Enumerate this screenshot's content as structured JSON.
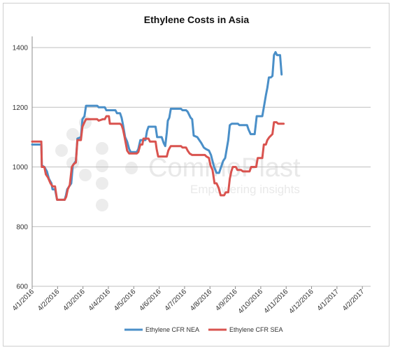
{
  "chart_data": {
    "type": "line",
    "title": "Ethylene Costs in Asia",
    "xlabel": "",
    "ylabel": "",
    "ylim": [
      600,
      1400
    ],
    "yticks": [
      600,
      800,
      1000,
      1200,
      1400
    ],
    "xticks": [
      "4/1/2016",
      "4/2/2016",
      "4/3/2016",
      "4/4/2016",
      "4/5/2016",
      "4/6/2016",
      "4/7/2016",
      "4/8/2016",
      "4/9/2016",
      "4/10/2016",
      "4/11/2016",
      "4/12/2016",
      "4/1/2017",
      "4/2/2017"
    ],
    "grid": "horizontal",
    "legend": "bottom",
    "series": [
      {
        "name": "Ethylene CFR NEA",
        "color": "#4a8fc8",
        "points": [
          [
            0,
            1075
          ],
          [
            0.36,
            1075
          ],
          [
            0.38,
            1005
          ],
          [
            0.48,
            1000
          ],
          [
            0.58,
            985
          ],
          [
            0.66,
            960
          ],
          [
            0.76,
            945
          ],
          [
            0.8,
            925
          ],
          [
            0.9,
            925
          ],
          [
            0.98,
            890
          ],
          [
            1.28,
            890
          ],
          [
            1.33,
            905
          ],
          [
            1.38,
            925
          ],
          [
            1.46,
            935
          ],
          [
            1.54,
            945
          ],
          [
            1.6,
            1005
          ],
          [
            1.72,
            1020
          ],
          [
            1.78,
            1095
          ],
          [
            1.92,
            1100
          ],
          [
            1.98,
            1160
          ],
          [
            2.06,
            1170
          ],
          [
            2.12,
            1205
          ],
          [
            2.56,
            1205
          ],
          [
            2.62,
            1200
          ],
          [
            2.86,
            1200
          ],
          [
            2.92,
            1190
          ],
          [
            3.28,
            1190
          ],
          [
            3.34,
            1180
          ],
          [
            3.46,
            1180
          ],
          [
            3.52,
            1165
          ],
          [
            3.58,
            1140
          ],
          [
            3.66,
            1100
          ],
          [
            3.74,
            1085
          ],
          [
            3.82,
            1060
          ],
          [
            3.88,
            1050
          ],
          [
            4.12,
            1050
          ],
          [
            4.18,
            1060
          ],
          [
            4.26,
            1090
          ],
          [
            4.46,
            1090
          ],
          [
            4.52,
            1120
          ],
          [
            4.58,
            1135
          ],
          [
            4.86,
            1135
          ],
          [
            4.92,
            1100
          ],
          [
            5.1,
            1100
          ],
          [
            5.18,
            1080
          ],
          [
            5.24,
            1070
          ],
          [
            5.3,
            1115
          ],
          [
            5.34,
            1155
          ],
          [
            5.4,
            1165
          ],
          [
            5.46,
            1195
          ],
          [
            5.56,
            1195
          ],
          [
            5.86,
            1195
          ],
          [
            5.92,
            1190
          ],
          [
            6.06,
            1190
          ],
          [
            6.12,
            1185
          ],
          [
            6.18,
            1175
          ],
          [
            6.24,
            1165
          ],
          [
            6.3,
            1160
          ],
          [
            6.36,
            1105
          ],
          [
            6.5,
            1100
          ],
          [
            6.58,
            1090
          ],
          [
            6.66,
            1080
          ],
          [
            6.76,
            1065
          ],
          [
            6.84,
            1060
          ],
          [
            6.96,
            1055
          ],
          [
            7.04,
            1040
          ],
          [
            7.1,
            1020
          ],
          [
            7.16,
            1000
          ],
          [
            7.26,
            980
          ],
          [
            7.36,
            980
          ],
          [
            7.44,
            1000
          ],
          [
            7.52,
            1020
          ],
          [
            7.6,
            1030
          ],
          [
            7.66,
            1060
          ],
          [
            7.72,
            1090
          ],
          [
            7.78,
            1140
          ],
          [
            7.86,
            1145
          ],
          [
            8.1,
            1145
          ],
          [
            8.16,
            1140
          ],
          [
            8.46,
            1140
          ],
          [
            8.52,
            1125
          ],
          [
            8.6,
            1110
          ],
          [
            8.76,
            1110
          ],
          [
            8.84,
            1170
          ],
          [
            9.06,
            1170
          ],
          [
            9.12,
            1200
          ],
          [
            9.2,
            1240
          ],
          [
            9.26,
            1265
          ],
          [
            9.32,
            1300
          ],
          [
            9.4,
            1300
          ],
          [
            9.46,
            1305
          ],
          [
            9.52,
            1375
          ],
          [
            9.58,
            1385
          ],
          [
            9.64,
            1375
          ],
          [
            9.76,
            1375
          ],
          [
            9.82,
            1310
          ]
        ]
      },
      {
        "name": "Ethylene CFR SEA",
        "color": "#d9534f",
        "points": [
          [
            0,
            1085
          ],
          [
            0.36,
            1085
          ],
          [
            0.38,
            1000
          ],
          [
            0.48,
            1000
          ],
          [
            0.54,
            975
          ],
          [
            0.62,
            965
          ],
          [
            0.72,
            945
          ],
          [
            0.8,
            935
          ],
          [
            0.9,
            935
          ],
          [
            0.98,
            890
          ],
          [
            1.28,
            890
          ],
          [
            1.34,
            900
          ],
          [
            1.4,
            925
          ],
          [
            1.48,
            940
          ],
          [
            1.56,
            1000
          ],
          [
            1.64,
            1010
          ],
          [
            1.72,
            1015
          ],
          [
            1.78,
            1090
          ],
          [
            1.92,
            1090
          ],
          [
            1.98,
            1135
          ],
          [
            2.06,
            1150
          ],
          [
            2.12,
            1160
          ],
          [
            2.56,
            1160
          ],
          [
            2.62,
            1155
          ],
          [
            2.78,
            1160
          ],
          [
            2.86,
            1160
          ],
          [
            2.92,
            1170
          ],
          [
            3.02,
            1170
          ],
          [
            3.06,
            1145
          ],
          [
            3.46,
            1145
          ],
          [
            3.52,
            1140
          ],
          [
            3.58,
            1125
          ],
          [
            3.64,
            1100
          ],
          [
            3.74,
            1055
          ],
          [
            3.82,
            1045
          ],
          [
            3.88,
            1045
          ],
          [
            4.12,
            1045
          ],
          [
            4.18,
            1050
          ],
          [
            4.26,
            1075
          ],
          [
            4.34,
            1075
          ],
          [
            4.38,
            1095
          ],
          [
            4.58,
            1095
          ],
          [
            4.64,
            1085
          ],
          [
            4.86,
            1085
          ],
          [
            4.9,
            1060
          ],
          [
            4.96,
            1035
          ],
          [
            5.3,
            1035
          ],
          [
            5.36,
            1055
          ],
          [
            5.42,
            1065
          ],
          [
            5.46,
            1070
          ],
          [
            5.86,
            1070
          ],
          [
            5.92,
            1065
          ],
          [
            6.06,
            1065
          ],
          [
            6.12,
            1055
          ],
          [
            6.2,
            1045
          ],
          [
            6.3,
            1040
          ],
          [
            6.36,
            1040
          ],
          [
            6.7,
            1040
          ],
          [
            6.8,
            1040
          ],
          [
            6.86,
            1035
          ],
          [
            6.96,
            1030
          ],
          [
            7.02,
            1005
          ],
          [
            7.1,
            990
          ],
          [
            7.18,
            945
          ],
          [
            7.26,
            945
          ],
          [
            7.34,
            930
          ],
          [
            7.42,
            905
          ],
          [
            7.56,
            905
          ],
          [
            7.62,
            915
          ],
          [
            7.72,
            915
          ],
          [
            7.78,
            960
          ],
          [
            7.84,
            985
          ],
          [
            7.9,
            1000
          ],
          [
            8.02,
            1000
          ],
          [
            8.08,
            990
          ],
          [
            8.22,
            990
          ],
          [
            8.3,
            985
          ],
          [
            8.56,
            985
          ],
          [
            8.62,
            1000
          ],
          [
            8.82,
            1000
          ],
          [
            8.88,
            1030
          ],
          [
            9.06,
            1030
          ],
          [
            9.12,
            1075
          ],
          [
            9.2,
            1075
          ],
          [
            9.26,
            1090
          ],
          [
            9.34,
            1100
          ],
          [
            9.46,
            1110
          ],
          [
            9.52,
            1150
          ],
          [
            9.62,
            1150
          ],
          [
            9.68,
            1145
          ],
          [
            9.9,
            1145
          ]
        ]
      }
    ]
  },
  "watermark": {
    "brand": "CommoPlast",
    "tagline": "Empowering insights"
  }
}
